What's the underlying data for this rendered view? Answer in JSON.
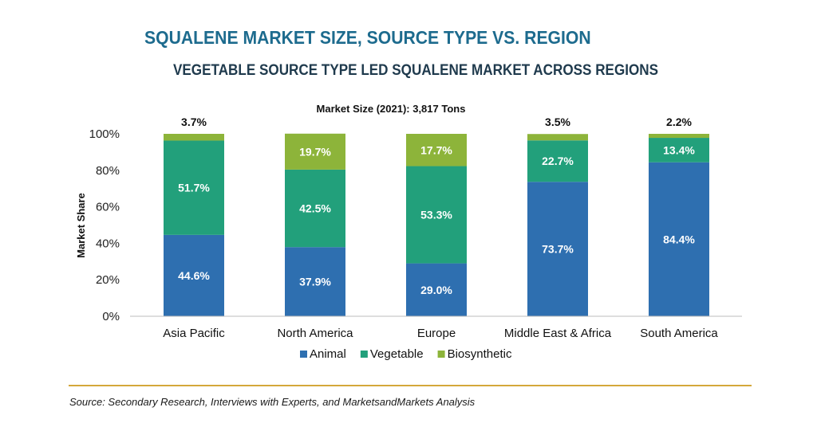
{
  "title": "SQUALENE MARKET SIZE, SOURCE TYPE VS. REGION",
  "subtitle": "VEGETABLE SOURCE TYPE LED SQUALENE MARKET ACROSS REGIONS",
  "source": "Source: Secondary Research, Interviews with Experts, and MarketsandMarkets Analysis",
  "colors": {
    "animal": "#2e6fb0",
    "vegetable": "#22a07b",
    "biosynthetic": "#8db43a",
    "rule": "#d4a73a"
  },
  "chart_data": {
    "type": "bar",
    "stacked": true,
    "title": "Market Size (2021): 3,817 Tons",
    "xlabel": "",
    "ylabel": "Market Share",
    "ylim": [
      0,
      100
    ],
    "yticks": [
      "0%",
      "20%",
      "40%",
      "60%",
      "80%",
      "100%"
    ],
    "categories": [
      "Asia Pacific",
      "North America",
      "Europe",
      "Middle East & Africa",
      "South America"
    ],
    "series": [
      {
        "name": "Animal",
        "values": [
          44.6,
          37.9,
          29.0,
          73.7,
          84.4
        ],
        "labels": [
          "44.6%",
          "37.9%",
          "29.0%",
          "73.7%",
          "84.4%"
        ]
      },
      {
        "name": "Vegetable",
        "values": [
          51.7,
          42.5,
          53.3,
          22.7,
          13.4
        ],
        "labels": [
          "51.7%",
          "42.5%",
          "53.3%",
          "22.7%",
          "13.4%"
        ]
      },
      {
        "name": "Biosynthetic",
        "values": [
          3.7,
          19.7,
          17.7,
          3.5,
          2.2
        ],
        "labels": [
          "3.7%",
          "19.7%",
          "17.7%",
          "3.5%",
          "2.2%"
        ]
      }
    ],
    "legend_position": "bottom",
    "grid": false
  }
}
